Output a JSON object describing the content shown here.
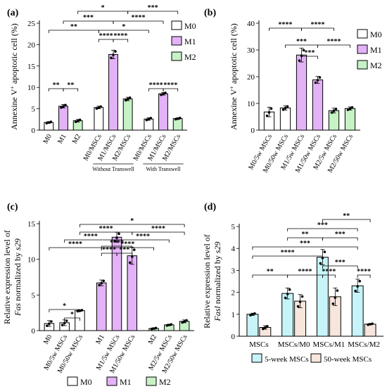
{
  "colors": {
    "M0": "#ffffff",
    "M1": "#e3b2f7",
    "M2": "#c6f2c6",
    "w5": "#c6f4f8",
    "w50": "#f6e6dc",
    "edge": "#000000"
  },
  "chart_data": [
    {
      "panel": "(a)",
      "type": "bar",
      "ylabel": "Annexine V+ apoptotic cell (%)",
      "ylabel_main": "Annexine V",
      "ylabel_sup": "+",
      "ylabel_rest": " apoptotic cell (%)",
      "ylim": [
        0,
        25
      ],
      "yticks": [
        0,
        5,
        10,
        15,
        20,
        25
      ],
      "categories": [
        "M0",
        "M1",
        "M2",
        "M0/MSCs",
        "M1/MSCs",
        "M2/MSCs",
        "M0/MSCs",
        "M1/MSCs",
        "M2/MSCs"
      ],
      "values": [
        1.8,
        5.6,
        2.2,
        5.3,
        17.7,
        7.3,
        2.6,
        8.5,
        2.7
      ],
      "errors": [
        0.2,
        0.4,
        0.3,
        0.3,
        1.0,
        0.4,
        0.3,
        0.3,
        0.2
      ],
      "colors": [
        "M0",
        "M1",
        "M2",
        "M0",
        "M1",
        "M2",
        "M0",
        "M1",
        "M2"
      ],
      "group_labels": [
        "Without Transwell",
        "With Transwell"
      ],
      "legend": [
        "M0",
        "M1",
        "M2"
      ],
      "significance": [
        {
          "from": 0,
          "to": 1,
          "level": 0,
          "label": "**"
        },
        {
          "from": 1,
          "to": 2,
          "level": 0,
          "label": "**"
        },
        {
          "from": 0,
          "to": 3,
          "level": 1,
          "label": "**"
        },
        {
          "from": 1,
          "to": 4,
          "level": 2,
          "label": "***"
        },
        {
          "from": 2,
          "to": 5,
          "level": 3,
          "label": "*"
        },
        {
          "from": 3,
          "to": 4,
          "level": 0,
          "label": "****"
        },
        {
          "from": 4,
          "to": 5,
          "level": 0,
          "label": "****"
        },
        {
          "from": 3,
          "to": 6,
          "level": 1,
          "label": "*"
        },
        {
          "from": 4,
          "to": 7,
          "level": 2,
          "label": "****"
        },
        {
          "from": 5,
          "to": 8,
          "level": 3,
          "label": "***"
        },
        {
          "from": 6,
          "to": 7,
          "level": 0,
          "label": "****"
        },
        {
          "from": 7,
          "to": 8,
          "level": 0,
          "label": "****"
        }
      ]
    },
    {
      "panel": "(b)",
      "type": "bar",
      "ylabel": "Annexine V+ apoptotic cell (%)",
      "ylabel_main": "Annexine V",
      "ylabel_sup": "+",
      "ylabel_rest": " apoptotic cell (%)",
      "ylim": [
        0,
        40
      ],
      "yticks": [
        0,
        10,
        20,
        30,
        40
      ],
      "categories": [
        "M0/5w MSCs",
        "M0/50w MSCs",
        "M1/5w MSCs",
        "M1/50w MSCs",
        "M2/5w MSCs",
        "M2/50w MSCs"
      ],
      "values": [
        6.8,
        8.3,
        28.1,
        18.8,
        7.3,
        8.1
      ],
      "errors": [
        1.8,
        0.8,
        2.6,
        1.3,
        0.9,
        0.6
      ],
      "colors": [
        "M0",
        "M0",
        "M1",
        "M1",
        "M2",
        "M2"
      ],
      "legend": [
        "M0",
        "M1",
        "M2"
      ],
      "significance": [
        {
          "from": 2,
          "to": 3,
          "level": 0,
          "label": "***"
        },
        {
          "from": 1,
          "to": 3,
          "level": 1,
          "label": "***"
        },
        {
          "from": 3,
          "to": 5,
          "level": 1,
          "label": "****"
        },
        {
          "from": 0,
          "to": 2,
          "level": 2,
          "label": "****"
        },
        {
          "from": 2,
          "to": 4,
          "level": 2,
          "label": "****"
        }
      ]
    },
    {
      "panel": "(c)",
      "type": "bar",
      "ylabel_line1": "Relative expression level of",
      "ylabel_italic": "Fas",
      "ylabel_rest": " normalized by ",
      "ylabel_italic2": "s29",
      "ylim": [
        0,
        15
      ],
      "yticks": [
        0,
        5,
        10,
        15
      ],
      "categories": [
        "M0",
        "M0/5w MSCs",
        "M0/50w MSCs",
        "M1",
        "M1/5w MSCs",
        "M1/50w MSCs",
        "M2",
        "M2/5w MSCs",
        "M2/50w MSCs"
      ],
      "values": [
        1.0,
        1.1,
        2.8,
        6.7,
        13.1,
        10.5,
        0.3,
        0.8,
        1.3
      ],
      "errors": [
        0.4,
        0.4,
        0.1,
        0.4,
        0.7,
        1.2,
        0.1,
        0.1,
        0.2
      ],
      "colors": [
        "M0",
        "M0",
        "M0",
        "M1",
        "M1",
        "M1",
        "M2",
        "M2",
        "M2"
      ],
      "legend": [
        "M0",
        "M1",
        "M2"
      ],
      "significance": [
        {
          "from": 1,
          "to": 2,
          "level": 0,
          "label": "*"
        },
        {
          "from": 0,
          "to": 2,
          "level": 1,
          "label": "*"
        },
        {
          "from": 3,
          "to": 4,
          "level": 0,
          "label": "****"
        },
        {
          "from": 4,
          "to": 5,
          "level": 0,
          "label": "***"
        },
        {
          "from": 3,
          "to": 5,
          "level": 1,
          "label": "****"
        },
        {
          "from": 1,
          "to": 4,
          "level": 2,
          "label": "****"
        },
        {
          "from": 2,
          "to": 5,
          "level": 3,
          "label": "****"
        },
        {
          "from": 4,
          "to": 7,
          "level": 4,
          "label": "****"
        },
        {
          "from": 5,
          "to": 8,
          "level": 5,
          "label": "****"
        },
        {
          "from": 0,
          "to": 3,
          "level": 6,
          "label": "****"
        },
        {
          "from": 3,
          "to": 6,
          "level": 6,
          "label": "****"
        },
        {
          "from": 2,
          "to": 8,
          "level": 7,
          "label": "*"
        }
      ]
    },
    {
      "panel": "(d)",
      "type": "bar",
      "ylabel_line1": "Relative expression level of",
      "ylabel_italic": "Fasl",
      "ylabel_rest": " normalized by ",
      "ylabel_italic2": "s29",
      "ylim": [
        0,
        5
      ],
      "yticks": [
        0,
        1,
        2,
        3,
        4,
        5
      ],
      "categories": [
        "MSCs",
        "MSCs/M0",
        "MSCs/M1",
        "MSCs/M2"
      ],
      "series": [
        {
          "name": "5-week MSCs",
          "values": [
            1.0,
            1.95,
            3.6,
            2.3
          ],
          "errors": [
            0.05,
            0.25,
            0.35,
            0.3
          ]
        },
        {
          "name": "50-week MSCs",
          "values": [
            0.4,
            1.6,
            1.8,
            0.55
          ],
          "errors": [
            0.08,
            0.3,
            0.4,
            0.03
          ]
        }
      ],
      "legend": [
        "5-week MSCs",
        "50-week MSCs"
      ],
      "significance": [
        {
          "from": 0,
          "to": 2,
          "level": 0,
          "label": "**"
        },
        {
          "from": 2,
          "to": 4,
          "level": 0,
          "label": "****"
        },
        {
          "from": 4,
          "to": 5,
          "level": 0,
          "label": "****"
        },
        {
          "from": 6,
          "to": 7,
          "level": 0,
          "label": "****"
        },
        {
          "from": 4,
          "to": 6,
          "level": 1,
          "label": "***"
        },
        {
          "from": 0,
          "to": 4,
          "level": 2,
          "label": "****"
        },
        {
          "from": 0,
          "to": 6,
          "level": 3,
          "label": "***"
        },
        {
          "from": 2,
          "to": 4,
          "level": 4,
          "label": "**"
        },
        {
          "from": 4,
          "to": 6,
          "level": 4,
          "label": "***"
        },
        {
          "from": 2,
          "to": 6,
          "level": 5,
          "label": "***"
        },
        {
          "from": 4,
          "to": 7,
          "level": 6,
          "label": "**"
        }
      ]
    }
  ]
}
